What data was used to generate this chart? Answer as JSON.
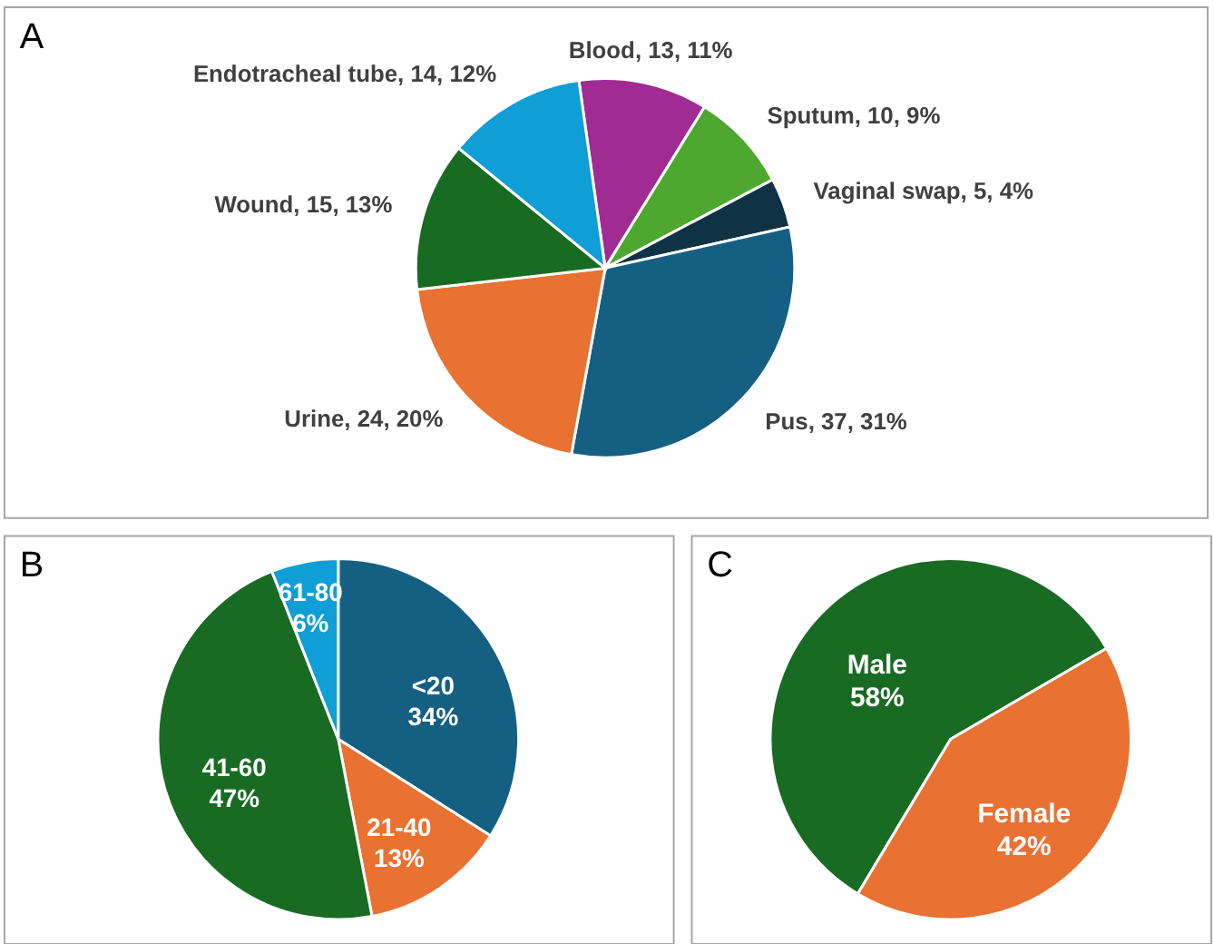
{
  "chart_data": [
    {
      "type": "pie",
      "title": "A",
      "categories": [
        "Blood",
        "Sputum",
        "Vaginal swap",
        "Pus",
        "Urine",
        "Wound",
        "Endotracheal tube"
      ],
      "values": [
        13,
        10,
        5,
        37,
        24,
        15,
        14
      ],
      "value_labels": [
        "13, 11%",
        "10, 9%",
        "5, 4%",
        "37, 31%",
        "24, 20%",
        "15, 13%",
        "14, 12%"
      ],
      "colors": [
        "#a02b93",
        "#4ea72e",
        "#0f3344",
        "#156082",
        "#e97132",
        "#196b24",
        "#0f9ed5"
      ]
    },
    {
      "type": "pie",
      "title": "B",
      "categories": [
        "<20",
        "21-40",
        "41-60",
        "61-80"
      ],
      "values": [
        34,
        13,
        47,
        6
      ],
      "value_labels": [
        "34%",
        "13%",
        "47%",
        "6%"
      ],
      "colors": [
        "#156082",
        "#e97132",
        "#196b24",
        "#0f9ed5"
      ]
    },
    {
      "type": "pie",
      "title": "C",
      "categories": [
        "Male",
        "Female"
      ],
      "values": [
        58,
        42
      ],
      "value_labels": [
        "58%",
        "42%"
      ],
      "colors": [
        "#196b24",
        "#e97132"
      ]
    }
  ]
}
